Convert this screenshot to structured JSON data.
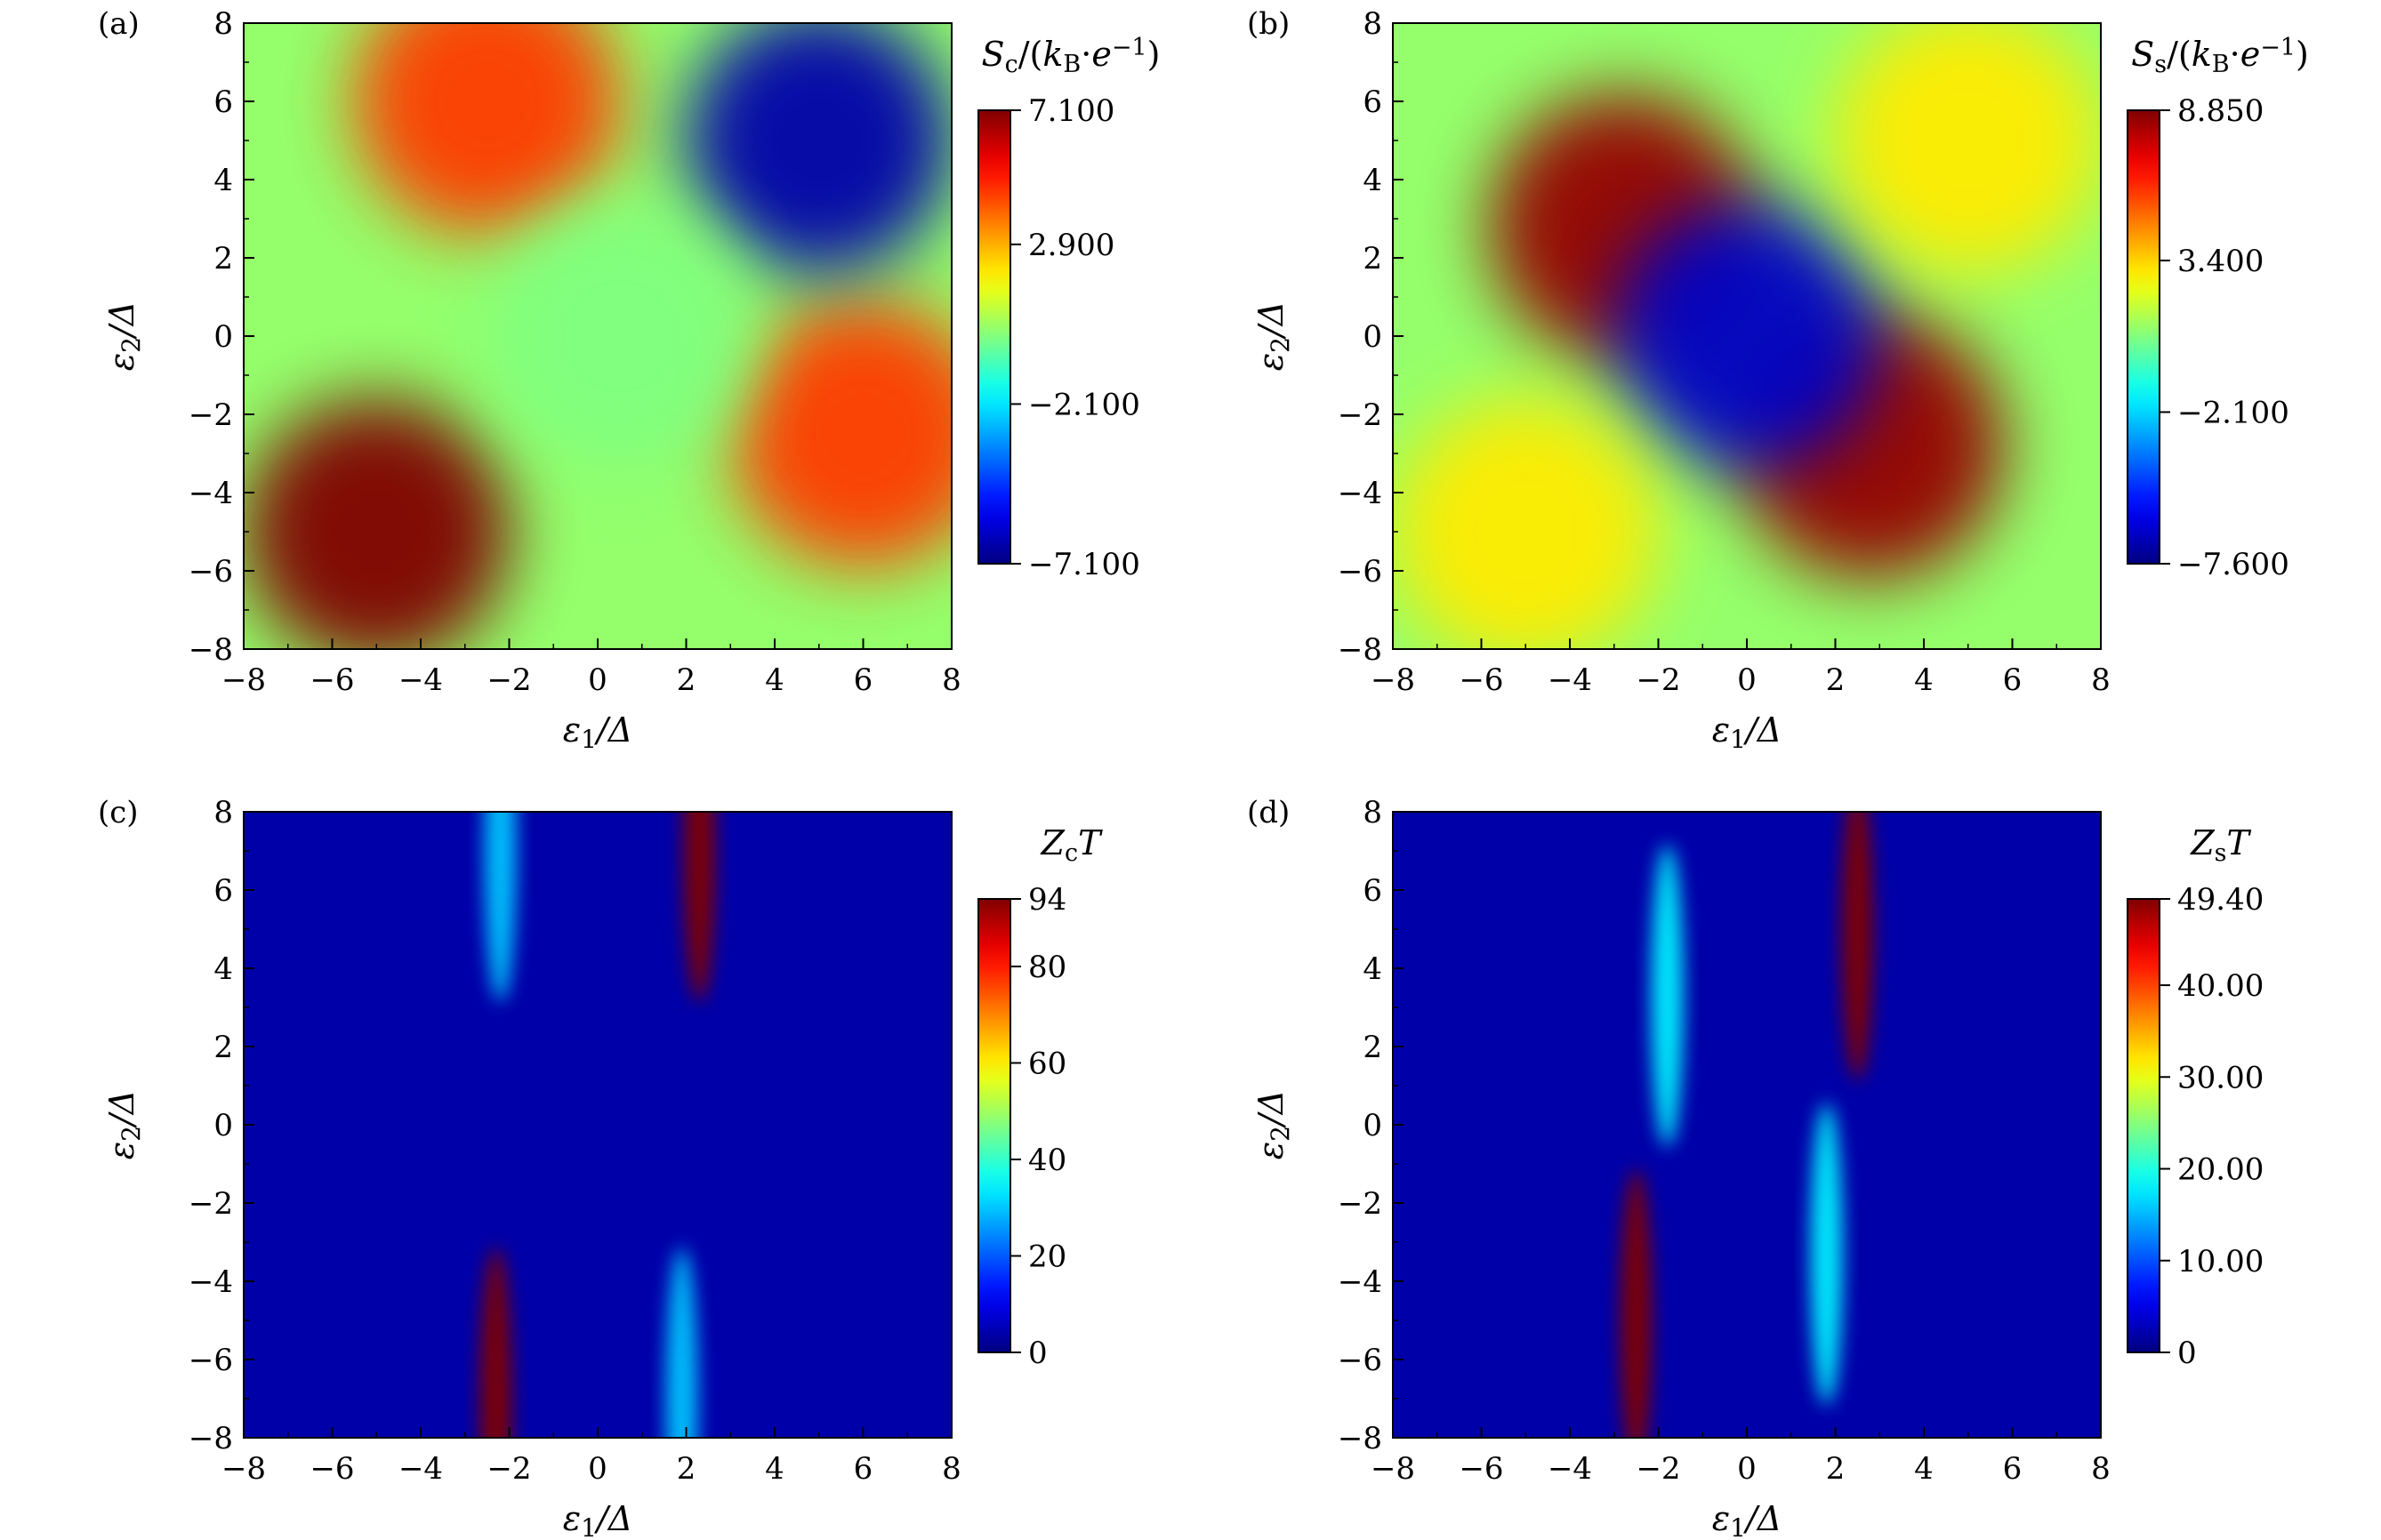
{
  "chart_data": [
    {
      "type": "heatmap",
      "panel_label": "(a)",
      "xlabel": "ε1/Δ",
      "ylabel": "ε2/Δ",
      "colorbar_title": "Sc/(kB·e−1)",
      "xlim": [
        -8,
        8
      ],
      "ylim": [
        -8,
        8
      ],
      "x_ticks": [
        "−8",
        "−6",
        "−4",
        "−2",
        "0",
        "2",
        "4",
        "6",
        "8"
      ],
      "y_ticks": [
        "−8",
        "−6",
        "−4",
        "−2",
        "0",
        "2",
        "4",
        "6",
        "8"
      ],
      "colorbar_range": [
        -7.1,
        7.1
      ],
      "colorbar_ticks": [
        "7.100",
        "2.900",
        "−2.100",
        "−7.100"
      ],
      "colorbar_tick_values": [
        7.1,
        2.9,
        -2.1,
        -7.1
      ],
      "colormap": "jet",
      "features": [
        {
          "x": -5,
          "y": -5,
          "value": 7.1
        },
        {
          "x": -2.5,
          "y": 6,
          "value": 4.5
        },
        {
          "x": 6,
          "y": -2.5,
          "value": 4.5
        },
        {
          "x": 5,
          "y": 5,
          "value": -6.5
        },
        {
          "x": 0.5,
          "y": 0,
          "value": 0
        }
      ]
    },
    {
      "type": "heatmap",
      "panel_label": "(b)",
      "xlabel": "ε1/Δ",
      "ylabel": "ε2/Δ",
      "colorbar_title": "Ss/(kB·e−1)",
      "xlim": [
        -8,
        8
      ],
      "ylim": [
        -8,
        8
      ],
      "x_ticks": [
        "−8",
        "−6",
        "−4",
        "−2",
        "0",
        "2",
        "4",
        "6",
        "8"
      ],
      "y_ticks": [
        "−8",
        "−6",
        "−4",
        "−2",
        "0",
        "2",
        "4",
        "6",
        "8"
      ],
      "colorbar_range": [
        -7.6,
        8.85
      ],
      "colorbar_ticks": [
        "8.850",
        "3.400",
        "−2.100",
        "−7.600"
      ],
      "colorbar_tick_values": [
        8.85,
        3.4,
        -2.1,
        -7.6
      ],
      "colormap": "jet",
      "features": [
        {
          "x": -2.8,
          "y": 2.8,
          "value": 8.5
        },
        {
          "x": 2.8,
          "y": -2.8,
          "value": 8.5
        },
        {
          "x": 0,
          "y": 0,
          "value": -6.5
        },
        {
          "x": 5,
          "y": 5,
          "value": 3.0
        },
        {
          "x": -5,
          "y": -5,
          "value": 3.0
        }
      ]
    },
    {
      "type": "heatmap",
      "panel_label": "(c)",
      "xlabel": "ε1/Δ",
      "ylabel": "ε2/Δ",
      "colorbar_title": "ZcT",
      "xlim": [
        -8,
        8
      ],
      "ylim": [
        -8,
        8
      ],
      "x_ticks": [
        "−8",
        "−6",
        "−4",
        "−2",
        "0",
        "2",
        "4",
        "6",
        "8"
      ],
      "y_ticks": [
        "−8",
        "−6",
        "−4",
        "−2",
        "0",
        "2",
        "4",
        "6",
        "8"
      ],
      "colorbar_range": [
        0,
        94
      ],
      "colorbar_ticks": [
        "94",
        "80",
        "60",
        "40",
        "20",
        "0"
      ],
      "colorbar_tick_values": [
        94,
        80,
        60,
        40,
        20,
        0
      ],
      "colormap": "jet",
      "features": [
        {
          "x": 2.3,
          "y": 7,
          "value": 94
        },
        {
          "x": -2.3,
          "y": -7,
          "value": 94
        },
        {
          "x": -2.2,
          "y": 7,
          "value": 30
        },
        {
          "x": 1.9,
          "y": -7,
          "value": 30
        }
      ]
    },
    {
      "type": "heatmap",
      "panel_label": "(d)",
      "xlabel": "ε1/Δ",
      "ylabel": "ε2/Δ",
      "colorbar_title": "ZsT",
      "xlim": [
        -8,
        8
      ],
      "ylim": [
        -8,
        8
      ],
      "x_ticks": [
        "−8",
        "−6",
        "−4",
        "−2",
        "0",
        "2",
        "4",
        "6",
        "8"
      ],
      "y_ticks": [
        "−8",
        "−6",
        "−4",
        "−2",
        "0",
        "2",
        "4",
        "6",
        "8"
      ],
      "colorbar_range": [
        0,
        49.4
      ],
      "colorbar_ticks": [
        "49.40",
        "40.00",
        "30.00",
        "20.00",
        "10.00",
        "0"
      ],
      "colorbar_tick_values": [
        49.4,
        40,
        30,
        20,
        10,
        0
      ],
      "colormap": "jet",
      "features": [
        {
          "x": 2.5,
          "y": 5,
          "value": 49.4
        },
        {
          "x": -2.5,
          "y": -5,
          "value": 49.4
        },
        {
          "x": -1.8,
          "y": 3.3,
          "value": 18
        },
        {
          "x": 1.8,
          "y": -3.3,
          "value": 18
        }
      ]
    }
  ]
}
